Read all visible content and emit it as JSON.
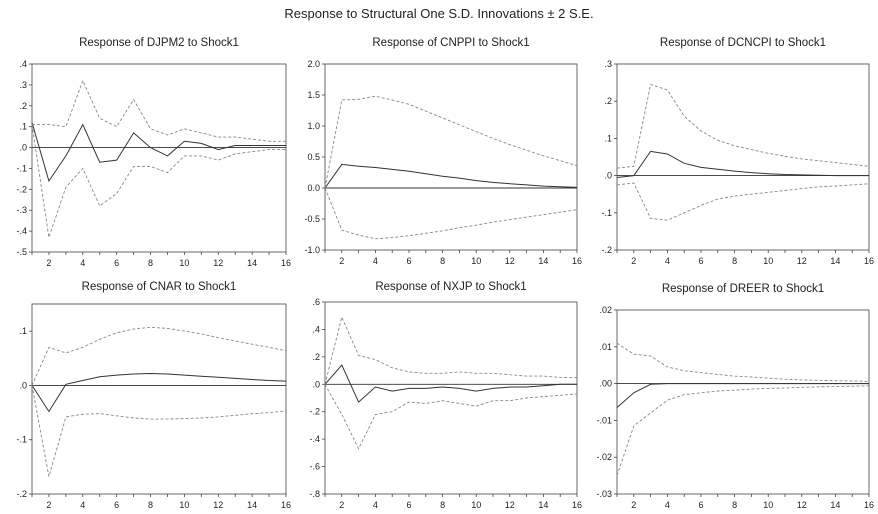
{
  "figure": {
    "title": "Response to Structural One S.D. Innovations ± 2 S.E."
  },
  "chart_data": [
    {
      "type": "line",
      "title": "Response of DJPM2 to Shock1",
      "xlabel": "",
      "ylabel": "",
      "x": [
        1,
        2,
        3,
        4,
        5,
        6,
        7,
        8,
        9,
        10,
        11,
        12,
        13,
        14,
        15,
        16
      ],
      "xlim": [
        1,
        16
      ],
      "ylim": [
        -0.5,
        0.4
      ],
      "xticks": [
        2,
        4,
        6,
        8,
        10,
        12,
        14,
        16
      ],
      "xtick_labels": [
        "2",
        "4",
        "6",
        "8",
        "10",
        "12",
        "14",
        "16"
      ],
      "yticks": [
        -0.5,
        -0.4,
        -0.3,
        -0.2,
        -0.1,
        0.0,
        0.1,
        0.2,
        0.3,
        0.4
      ],
      "ytick_labels": [
        "-.5",
        "-.4",
        "-.3",
        "-.2",
        "-.1",
        ".0",
        ".1",
        ".2",
        ".3",
        ".4"
      ],
      "zero_line": true,
      "series": [
        {
          "role": "response",
          "values": [
            0.12,
            -0.16,
            -0.04,
            0.11,
            -0.07,
            -0.06,
            0.07,
            0.0,
            -0.04,
            0.03,
            0.02,
            -0.01,
            0.01,
            0.01,
            0.01,
            0.01
          ]
        },
        {
          "role": "upper",
          "values": [
            0.11,
            0.11,
            0.1,
            0.32,
            0.14,
            0.1,
            0.23,
            0.09,
            0.06,
            0.09,
            0.07,
            0.05,
            0.05,
            0.04,
            0.03,
            0.03
          ]
        },
        {
          "role": "lower",
          "values": [
            0.11,
            -0.43,
            -0.19,
            -0.1,
            -0.28,
            -0.22,
            -0.09,
            -0.09,
            -0.12,
            -0.04,
            -0.04,
            -0.06,
            -0.03,
            -0.02,
            -0.01,
            -0.01
          ]
        }
      ]
    },
    {
      "type": "line",
      "title": "Response of CNPPI to Shock1",
      "xlabel": "",
      "ylabel": "",
      "x": [
        1,
        2,
        3,
        4,
        5,
        6,
        7,
        8,
        9,
        10,
        11,
        12,
        13,
        14,
        15,
        16
      ],
      "xlim": [
        1,
        16
      ],
      "ylim": [
        -1.0,
        2.0
      ],
      "xticks": [
        2,
        4,
        6,
        8,
        10,
        12,
        14,
        16
      ],
      "xtick_labels": [
        "2",
        "4",
        "6",
        "8",
        "10",
        "12",
        "14",
        "16"
      ],
      "yticks": [
        -1.0,
        -0.5,
        0.0,
        0.5,
        1.0,
        1.5,
        2.0
      ],
      "ytick_labels": [
        "-1.0",
        "-0.5",
        "0.0",
        "0.5",
        "1.0",
        "1.5",
        "2.0"
      ],
      "zero_line": true,
      "series": [
        {
          "role": "response",
          "values": [
            0.0,
            0.38,
            0.35,
            0.33,
            0.3,
            0.27,
            0.23,
            0.19,
            0.16,
            0.12,
            0.09,
            0.07,
            0.05,
            0.03,
            0.02,
            0.01
          ]
        },
        {
          "role": "upper",
          "values": [
            0.0,
            1.42,
            1.43,
            1.48,
            1.42,
            1.35,
            1.24,
            1.13,
            1.02,
            0.91,
            0.8,
            0.7,
            0.61,
            0.52,
            0.44,
            0.36
          ]
        },
        {
          "role": "lower",
          "values": [
            0.0,
            -0.68,
            -0.76,
            -0.82,
            -0.8,
            -0.77,
            -0.73,
            -0.69,
            -0.64,
            -0.6,
            -0.55,
            -0.51,
            -0.47,
            -0.43,
            -0.39,
            -0.35
          ]
        }
      ]
    },
    {
      "type": "line",
      "title": "Response of DCNCPI to Shock1",
      "xlabel": "",
      "ylabel": "",
      "x": [
        1,
        2,
        3,
        4,
        5,
        6,
        7,
        8,
        9,
        10,
        11,
        12,
        13,
        14,
        15,
        16
      ],
      "xlim": [
        1,
        16
      ],
      "ylim": [
        -0.2,
        0.3
      ],
      "xticks": [
        2,
        4,
        6,
        8,
        10,
        12,
        14,
        16
      ],
      "xtick_labels": [
        "2",
        "4",
        "6",
        "8",
        "10",
        "12",
        "14",
        "16"
      ],
      "yticks": [
        -0.2,
        -0.1,
        0.0,
        0.1,
        0.2,
        0.3
      ],
      "ytick_labels": [
        "-.2",
        "-.1",
        ".0",
        ".1",
        ".2",
        ".3"
      ],
      "zero_line": true,
      "series": [
        {
          "role": "response",
          "values": [
            -0.005,
            0.0,
            0.065,
            0.058,
            0.033,
            0.022,
            0.017,
            0.012,
            0.008,
            0.005,
            0.003,
            0.002,
            0.001,
            0.0,
            0.0,
            0.0
          ]
        },
        {
          "role": "upper",
          "values": [
            0.02,
            0.025,
            0.245,
            0.23,
            0.16,
            0.12,
            0.095,
            0.08,
            0.07,
            0.06,
            0.052,
            0.045,
            0.04,
            0.035,
            0.03,
            0.025
          ]
        },
        {
          "role": "lower",
          "values": [
            -0.025,
            -0.02,
            -0.115,
            -0.12,
            -0.1,
            -0.08,
            -0.063,
            -0.055,
            -0.05,
            -0.045,
            -0.04,
            -0.035,
            -0.03,
            -0.028,
            -0.025,
            -0.022
          ]
        }
      ]
    },
    {
      "type": "line",
      "title": "Response of CNAR to Shock1",
      "xlabel": "",
      "ylabel": "",
      "x": [
        1,
        2,
        3,
        4,
        5,
        6,
        7,
        8,
        9,
        10,
        11,
        12,
        13,
        14,
        15,
        16
      ],
      "xlim": [
        1,
        16
      ],
      "ylim": [
        -0.2,
        0.15
      ],
      "xticks": [
        2,
        4,
        6,
        8,
        10,
        12,
        14,
        16
      ],
      "xtick_labels": [
        "2",
        "4",
        "6",
        "8",
        "10",
        "12",
        "14",
        "16"
      ],
      "yticks": [
        -0.2,
        -0.1,
        0.0,
        0.1
      ],
      "ytick_labels": [
        "-.2",
        "-.1",
        ".0",
        ".1"
      ],
      "zero_line": true,
      "series": [
        {
          "role": "response",
          "values": [
            0.0,
            -0.048,
            0.002,
            0.009,
            0.016,
            0.019,
            0.021,
            0.022,
            0.021,
            0.019,
            0.017,
            0.015,
            0.013,
            0.011,
            0.009,
            0.008
          ]
        },
        {
          "role": "upper",
          "values": [
            0.0,
            0.07,
            0.06,
            0.07,
            0.085,
            0.097,
            0.104,
            0.107,
            0.105,
            0.1,
            0.095,
            0.088,
            0.082,
            0.076,
            0.07,
            0.064
          ]
        },
        {
          "role": "lower",
          "values": [
            0.0,
            -0.168,
            -0.058,
            -0.053,
            -0.052,
            -0.056,
            -0.06,
            -0.062,
            -0.062,
            -0.061,
            -0.06,
            -0.058,
            -0.055,
            -0.052,
            -0.05,
            -0.047
          ]
        }
      ]
    },
    {
      "type": "line",
      "title": "Response of NXJP to Shock1",
      "xlabel": "",
      "ylabel": "",
      "x": [
        1,
        2,
        3,
        4,
        5,
        6,
        7,
        8,
        9,
        10,
        11,
        12,
        13,
        14,
        15,
        16
      ],
      "xlim": [
        1,
        16
      ],
      "ylim": [
        -0.8,
        0.6
      ],
      "xticks": [
        2,
        4,
        6,
        8,
        10,
        12,
        14,
        16
      ],
      "xtick_labels": [
        "2",
        "4",
        "6",
        "8",
        "10",
        "12",
        "14",
        "16"
      ],
      "yticks": [
        -0.8,
        -0.6,
        -0.4,
        -0.2,
        0.0,
        0.2,
        0.4,
        0.6
      ],
      "ytick_labels": [
        "-.8",
        "-.6",
        "-.4",
        "-.2",
        ".0",
        ".2",
        ".4",
        ".6"
      ],
      "zero_line": true,
      "series": [
        {
          "role": "response",
          "values": [
            0.0,
            0.14,
            -0.13,
            -0.02,
            -0.05,
            -0.03,
            -0.03,
            -0.02,
            -0.03,
            -0.05,
            -0.03,
            -0.02,
            -0.02,
            -0.01,
            0.0,
            0.0
          ]
        },
        {
          "role": "upper",
          "values": [
            0.0,
            0.49,
            0.21,
            0.18,
            0.12,
            0.09,
            0.08,
            0.08,
            0.09,
            0.08,
            0.08,
            0.07,
            0.06,
            0.06,
            0.05,
            0.05
          ]
        },
        {
          "role": "lower",
          "values": [
            0.0,
            -0.22,
            -0.47,
            -0.22,
            -0.2,
            -0.13,
            -0.14,
            -0.12,
            -0.14,
            -0.16,
            -0.12,
            -0.12,
            -0.1,
            -0.09,
            -0.08,
            -0.07
          ]
        }
      ]
    },
    {
      "type": "line",
      "title": "Response of DREER to Shock1",
      "xlabel": "",
      "ylabel": "",
      "x": [
        1,
        2,
        3,
        4,
        5,
        6,
        7,
        8,
        9,
        10,
        11,
        12,
        13,
        14,
        15,
        16
      ],
      "xlim": [
        1,
        16
      ],
      "ylim": [
        -0.03,
        0.02
      ],
      "xticks": [
        2,
        4,
        6,
        8,
        10,
        12,
        14,
        16
      ],
      "xtick_labels": [
        "2",
        "4",
        "6",
        "8",
        "10",
        "12",
        "14",
        "16"
      ],
      "yticks": [
        -0.03,
        -0.02,
        -0.01,
        0.0,
        0.01,
        0.02
      ],
      "ytick_labels": [
        "-.03",
        "-.02",
        "-.01",
        ".00",
        ".01",
        ".02"
      ],
      "zero_line": true,
      "series": [
        {
          "role": "response",
          "values": [
            -0.0065,
            -0.0025,
            -0.0002,
            0.0,
            0.0,
            0.0,
            0.0,
            0.0,
            0.0,
            0.0,
            0.0,
            0.0,
            0.0,
            0.0,
            0.0,
            0.0
          ]
        },
        {
          "role": "upper",
          "values": [
            0.011,
            0.008,
            0.0075,
            0.0045,
            0.0035,
            0.003,
            0.0025,
            0.002,
            0.0018,
            0.0015,
            0.0012,
            0.001,
            0.0009,
            0.0008,
            0.0007,
            0.0006
          ]
        },
        {
          "role": "lower",
          "values": [
            -0.025,
            -0.0115,
            -0.008,
            -0.0045,
            -0.003,
            -0.0025,
            -0.002,
            -0.0018,
            -0.0015,
            -0.0013,
            -0.0012,
            -0.001,
            -0.0009,
            -0.0008,
            -0.0007,
            -0.0006
          ]
        }
      ]
    }
  ]
}
